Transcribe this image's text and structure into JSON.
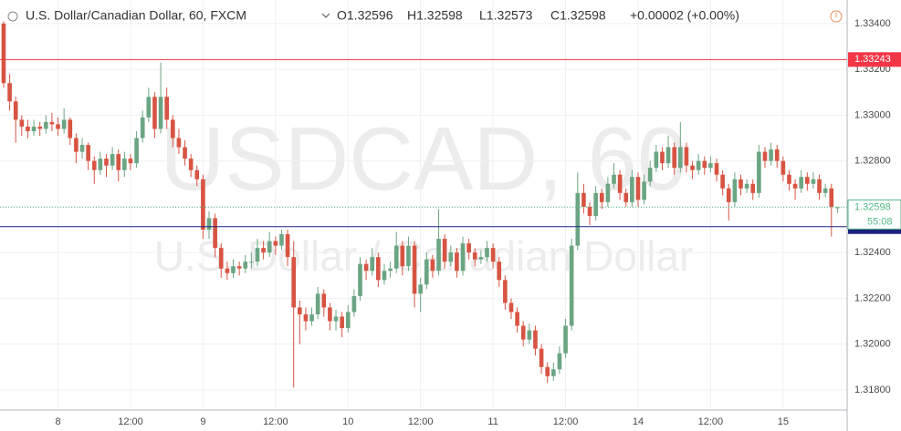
{
  "chart_data": {
    "type": "candlestick",
    "title": "U.S. Dollar/Canadian Dollar, 60, FXCM",
    "ohlc_labels": [
      "O1.32596",
      "H1.32598",
      "L1.32573",
      "C1.32598"
    ],
    "change": "+0.00002 (+0.00%)",
    "watermark": "USDCAD, 60",
    "watermark_subtitle": "U.S. Dollar / Canadian Dollar",
    "up_color": "#6ba583",
    "down_color": "#d75442",
    "ylim": [
      1.31712,
      1.33503
    ],
    "yticks": [
      {
        "value": 1.318,
        "label": "1.31800"
      },
      {
        "value": 1.32,
        "label": "1.32000"
      },
      {
        "value": 1.322,
        "label": "1.32200"
      },
      {
        "value": 1.324,
        "label": "1.32400"
      },
      {
        "value": 1.326,
        "label": "1.32600"
      },
      {
        "value": 1.328,
        "label": "1.32800"
      },
      {
        "value": 1.33,
        "label": "1.33000"
      },
      {
        "value": 1.332,
        "label": "1.33200"
      },
      {
        "value": 1.334,
        "label": "1.33400"
      }
    ],
    "xlim": [
      -0.6,
      139.6
    ],
    "xticks": [
      {
        "value": 9,
        "label": "8"
      },
      {
        "value": 21,
        "label": "12:00"
      },
      {
        "value": 33,
        "label": "9"
      },
      {
        "value": 45,
        "label": "12:00"
      },
      {
        "value": 57,
        "label": "10"
      },
      {
        "value": 69,
        "label": "12:00"
      },
      {
        "value": 81,
        "label": "11"
      },
      {
        "value": 93,
        "label": "12:00"
      },
      {
        "value": 105,
        "label": "14"
      },
      {
        "value": 117,
        "label": "12:00"
      },
      {
        "value": 129,
        "label": "15"
      }
    ],
    "grid": true,
    "price_lines": [
      {
        "value": 1.33243,
        "color": "#f23645"
      },
      {
        "value": 1.32513,
        "color": "#1a237e"
      }
    ],
    "last_price": {
      "value": 1.32598,
      "countdown": "55:08",
      "color": "#53b987"
    },
    "ohlc": [
      [
        1.334,
        1.3341,
        1.3312,
        1.3314
      ],
      [
        1.3314,
        1.3318,
        1.3302,
        1.3306
      ],
      [
        1.3306,
        1.3308,
        1.3288,
        1.3298
      ],
      [
        1.3298,
        1.33,
        1.3291,
        1.3295
      ],
      [
        1.3295,
        1.3298,
        1.329,
        1.3293
      ],
      [
        1.3293,
        1.3298,
        1.3291,
        1.3295
      ],
      [
        1.3295,
        1.3297,
        1.3291,
        1.3294
      ],
      [
        1.3294,
        1.33,
        1.3292,
        1.3297
      ],
      [
        1.3297,
        1.3301,
        1.3293,
        1.3296
      ],
      [
        1.3296,
        1.3299,
        1.3291,
        1.3294
      ],
      [
        1.3294,
        1.3303,
        1.3292,
        1.3298
      ],
      [
        1.3298,
        1.3299,
        1.3287,
        1.329
      ],
      [
        1.329,
        1.3292,
        1.3279,
        1.3284
      ],
      [
        1.3284,
        1.329,
        1.3281,
        1.3287
      ],
      [
        1.3287,
        1.3288,
        1.3276,
        1.328
      ],
      [
        1.328,
        1.3282,
        1.327,
        1.3276
      ],
      [
        1.3276,
        1.3284,
        1.3274,
        1.3281
      ],
      [
        1.3281,
        1.3283,
        1.3273,
        1.3278
      ],
      [
        1.3278,
        1.3286,
        1.3276,
        1.3283
      ],
      [
        1.3283,
        1.3285,
        1.3271,
        1.3276
      ],
      [
        1.3276,
        1.3284,
        1.3273,
        1.3281
      ],
      [
        1.3281,
        1.3283,
        1.3276,
        1.3279
      ],
      [
        1.3279,
        1.3293,
        1.3277,
        1.329
      ],
      [
        1.329,
        1.3302,
        1.3288,
        1.3299
      ],
      [
        1.3299,
        1.3312,
        1.3297,
        1.3308
      ],
      [
        1.3308,
        1.331,
        1.329,
        1.3294
      ],
      [
        1.3294,
        1.3323,
        1.3292,
        1.3308
      ],
      [
        1.3308,
        1.3312,
        1.3294,
        1.3298
      ],
      [
        1.3298,
        1.33,
        1.3286,
        1.329
      ],
      [
        1.329,
        1.3294,
        1.3283,
        1.3286
      ],
      [
        1.3286,
        1.3289,
        1.3278,
        1.3281
      ],
      [
        1.3281,
        1.3283,
        1.3273,
        1.3276
      ],
      [
        1.3276,
        1.3278,
        1.3269,
        1.3272
      ],
      [
        1.3272,
        1.3274,
        1.3246,
        1.325
      ],
      [
        1.325,
        1.3258,
        1.3246,
        1.3255
      ],
      [
        1.3255,
        1.3257,
        1.3238,
        1.3242
      ],
      [
        1.3242,
        1.3244,
        1.3229,
        1.3233
      ],
      [
        1.3233,
        1.3236,
        1.3228,
        1.3231
      ],
      [
        1.3231,
        1.3237,
        1.3229,
        1.3234
      ],
      [
        1.3234,
        1.3236,
        1.323,
        1.3233
      ],
      [
        1.3233,
        1.3239,
        1.3231,
        1.3236
      ],
      [
        1.3236,
        1.324,
        1.3233,
        1.3236
      ],
      [
        1.3236,
        1.3246,
        1.3234,
        1.3242
      ],
      [
        1.3242,
        1.3245,
        1.3237,
        1.324
      ],
      [
        1.324,
        1.3249,
        1.3238,
        1.3245
      ],
      [
        1.3245,
        1.3247,
        1.3239,
        1.3243
      ],
      [
        1.3243,
        1.325,
        1.3241,
        1.3248
      ],
      [
        1.3248,
        1.325,
        1.3234,
        1.3238
      ],
      [
        1.3238,
        1.3245,
        1.3181,
        1.3216
      ],
      [
        1.3216,
        1.3219,
        1.32,
        1.3213
      ],
      [
        1.3213,
        1.3216,
        1.3206,
        1.321
      ],
      [
        1.321,
        1.3216,
        1.3208,
        1.3213
      ],
      [
        1.3213,
        1.3225,
        1.3211,
        1.3222
      ],
      [
        1.3222,
        1.3224,
        1.3212,
        1.3216
      ],
      [
        1.3216,
        1.3218,
        1.3206,
        1.321
      ],
      [
        1.321,
        1.3215,
        1.3206,
        1.3212
      ],
      [
        1.3212,
        1.3214,
        1.3203,
        1.3207
      ],
      [
        1.3207,
        1.3217,
        1.3205,
        1.3214
      ],
      [
        1.3214,
        1.3224,
        1.3212,
        1.3221
      ],
      [
        1.3221,
        1.3238,
        1.3219,
        1.3235
      ],
      [
        1.3235,
        1.3237,
        1.3228,
        1.3232
      ],
      [
        1.3232,
        1.3242,
        1.323,
        1.3238
      ],
      [
        1.3238,
        1.324,
        1.3225,
        1.3228
      ],
      [
        1.3228,
        1.3235,
        1.3226,
        1.3232
      ],
      [
        1.3232,
        1.3236,
        1.3229,
        1.3233
      ],
      [
        1.3233,
        1.3249,
        1.3231,
        1.3243
      ],
      [
        1.3243,
        1.3245,
        1.323,
        1.3234
      ],
      [
        1.3234,
        1.3247,
        1.3232,
        1.3243
      ],
      [
        1.3243,
        1.3245,
        1.3216,
        1.3222
      ],
      [
        1.3222,
        1.3229,
        1.3214,
        1.3226
      ],
      [
        1.3226,
        1.324,
        1.3224,
        1.3237
      ],
      [
        1.3237,
        1.3239,
        1.3229,
        1.3232
      ],
      [
        1.3232,
        1.3259,
        1.323,
        1.3246
      ],
      [
        1.3246,
        1.3248,
        1.3233,
        1.3236
      ],
      [
        1.3236,
        1.3243,
        1.3234,
        1.324
      ],
      [
        1.324,
        1.3242,
        1.3229,
        1.3232
      ],
      [
        1.3232,
        1.3247,
        1.323,
        1.3244
      ],
      [
        1.3244,
        1.3246,
        1.3237,
        1.324
      ],
      [
        1.324,
        1.3242,
        1.3234,
        1.3237
      ],
      [
        1.3237,
        1.3241,
        1.3235,
        1.3238
      ],
      [
        1.3238,
        1.3245,
        1.3236,
        1.3242
      ],
      [
        1.3242,
        1.3244,
        1.3233,
        1.3236
      ],
      [
        1.3236,
        1.3238,
        1.3225,
        1.3228
      ],
      [
        1.3228,
        1.323,
        1.3215,
        1.3218
      ],
      [
        1.3218,
        1.322,
        1.3211,
        1.3214
      ],
      [
        1.3214,
        1.3216,
        1.3205,
        1.3208
      ],
      [
        1.3208,
        1.321,
        1.3199,
        1.3202
      ],
      [
        1.3202,
        1.3209,
        1.32,
        1.3206
      ],
      [
        1.3206,
        1.3208,
        1.3195,
        1.3198
      ],
      [
        1.3198,
        1.32,
        1.3187,
        1.319
      ],
      [
        1.319,
        1.3192,
        1.3183,
        1.3186
      ],
      [
        1.3186,
        1.3192,
        1.3184,
        1.3189
      ],
      [
        1.3189,
        1.3199,
        1.3187,
        1.3196
      ],
      [
        1.3196,
        1.3211,
        1.3194,
        1.3208
      ],
      [
        1.3208,
        1.3246,
        1.3206,
        1.3243
      ],
      [
        1.3243,
        1.3275,
        1.3241,
        1.3266
      ],
      [
        1.3266,
        1.327,
        1.3257,
        1.326
      ],
      [
        1.326,
        1.3262,
        1.3252,
        1.3256
      ],
      [
        1.3256,
        1.3269,
        1.3254,
        1.3266
      ],
      [
        1.3266,
        1.3268,
        1.3259,
        1.3262
      ],
      [
        1.3262,
        1.3273,
        1.326,
        1.327
      ],
      [
        1.327,
        1.3279,
        1.3268,
        1.3274
      ],
      [
        1.3274,
        1.3276,
        1.3263,
        1.3266
      ],
      [
        1.3266,
        1.3268,
        1.326,
        1.3262
      ],
      [
        1.3262,
        1.3276,
        1.326,
        1.3273
      ],
      [
        1.3273,
        1.3275,
        1.326,
        1.3263
      ],
      [
        1.3263,
        1.3274,
        1.3261,
        1.3271
      ],
      [
        1.3271,
        1.328,
        1.3269,
        1.3277
      ],
      [
        1.3277,
        1.3287,
        1.3275,
        1.3284
      ],
      [
        1.3284,
        1.3286,
        1.3276,
        1.3279
      ],
      [
        1.3279,
        1.3291,
        1.3277,
        1.3286
      ],
      [
        1.3286,
        1.3288,
        1.3274,
        1.3277
      ],
      [
        1.3277,
        1.3297,
        1.3275,
        1.3286
      ],
      [
        1.3286,
        1.3288,
        1.3275,
        1.3278
      ],
      [
        1.3278,
        1.328,
        1.3272,
        1.3276
      ],
      [
        1.3276,
        1.3283,
        1.3274,
        1.328
      ],
      [
        1.328,
        1.3282,
        1.3274,
        1.3277
      ],
      [
        1.3277,
        1.3282,
        1.3275,
        1.3279
      ],
      [
        1.3279,
        1.3281,
        1.3271,
        1.3274
      ],
      [
        1.3274,
        1.3276,
        1.3265,
        1.3268
      ],
      [
        1.3268,
        1.327,
        1.3254,
        1.3262
      ],
      [
        1.3262,
        1.3275,
        1.326,
        1.3272
      ],
      [
        1.3272,
        1.3274,
        1.3265,
        1.3268
      ],
      [
        1.3268,
        1.3272,
        1.3266,
        1.327
      ],
      [
        1.327,
        1.3272,
        1.3263,
        1.3266
      ],
      [
        1.3266,
        1.3287,
        1.3264,
        1.3284
      ],
      [
        1.3284,
        1.3286,
        1.3277,
        1.328
      ],
      [
        1.328,
        1.3288,
        1.3278,
        1.3285
      ],
      [
        1.3285,
        1.3287,
        1.3277,
        1.328
      ],
      [
        1.328,
        1.3282,
        1.3271,
        1.3274
      ],
      [
        1.3274,
        1.3276,
        1.3267,
        1.327
      ],
      [
        1.327,
        1.3272,
        1.3263,
        1.3268
      ],
      [
        1.3268,
        1.3276,
        1.3266,
        1.3273
      ],
      [
        1.3273,
        1.3275,
        1.3267,
        1.327
      ],
      [
        1.327,
        1.3275,
        1.3268,
        1.3272
      ],
      [
        1.3272,
        1.3274,
        1.3263,
        1.3266
      ],
      [
        1.3266,
        1.327,
        1.3264,
        1.3268
      ],
      [
        1.3268,
        1.327,
        1.3247,
        1.326
      ],
      [
        1.32596,
        1.32598,
        1.32573,
        1.32598
      ]
    ]
  }
}
